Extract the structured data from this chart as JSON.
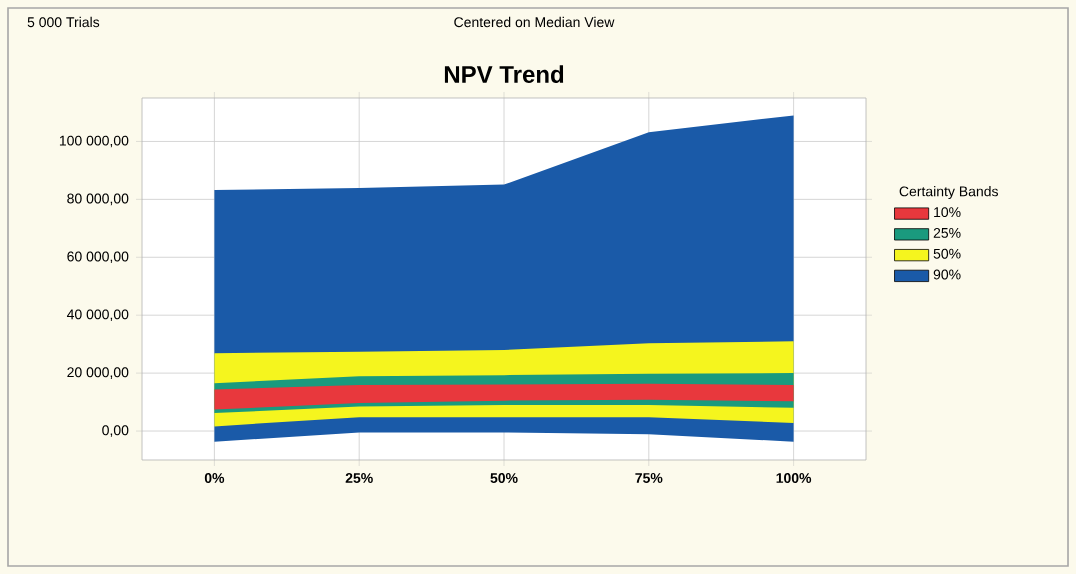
{
  "chart_data": {
    "type": "area",
    "title": "NPV Trend",
    "legend_title": "Certainty Bands",
    "annotations": [
      "5 000 Trials",
      "Centered on Median View"
    ],
    "categories": [
      "0%",
      "25%",
      "50%",
      "75%",
      "100%"
    ],
    "series": [
      {
        "name": "10%",
        "color": "#e8383d",
        "values": [
          null,
          null,
          null,
          null,
          null
        ],
        "upper": [
          14300,
          15900,
          16100,
          16300,
          15900
        ],
        "lower": [
          7400,
          9700,
          10500,
          10800,
          10300
        ]
      },
      {
        "name": "25%",
        "color": "#1a9a7e",
        "values": [
          null,
          null,
          null,
          null,
          null
        ],
        "upper": [
          16500,
          18900,
          19300,
          19800,
          20000
        ],
        "lower": [
          6200,
          8500,
          9000,
          9000,
          8000
        ]
      },
      {
        "name": "50%",
        "color": "#f5f51e",
        "values": [
          null,
          null,
          null,
          null,
          null
        ],
        "upper": [
          26900,
          27400,
          28000,
          30300,
          31000
        ],
        "lower": [
          1600,
          4800,
          4800,
          4800,
          2800
        ]
      },
      {
        "name": "90%",
        "color": "#1a5aa8",
        "values": [
          null,
          null,
          null,
          null,
          null
        ],
        "upper": [
          83200,
          83900,
          85100,
          103200,
          109000
        ],
        "lower": [
          -3700,
          -500,
          -500,
          -1100,
          -3700
        ]
      }
    ],
    "ylim": [
      -10000,
      115000
    ],
    "yticks": [
      {
        "value": 0,
        "label": "0,00"
      },
      {
        "value": 20000,
        "label": "20 000,00"
      },
      {
        "value": 40000,
        "label": "40 000,00"
      },
      {
        "value": 60000,
        "label": "60 000,00"
      },
      {
        "value": 80000,
        "label": "80 000,00"
      },
      {
        "value": 100000,
        "label": "100 000,00"
      }
    ],
    "grid": true,
    "legend": "right"
  }
}
